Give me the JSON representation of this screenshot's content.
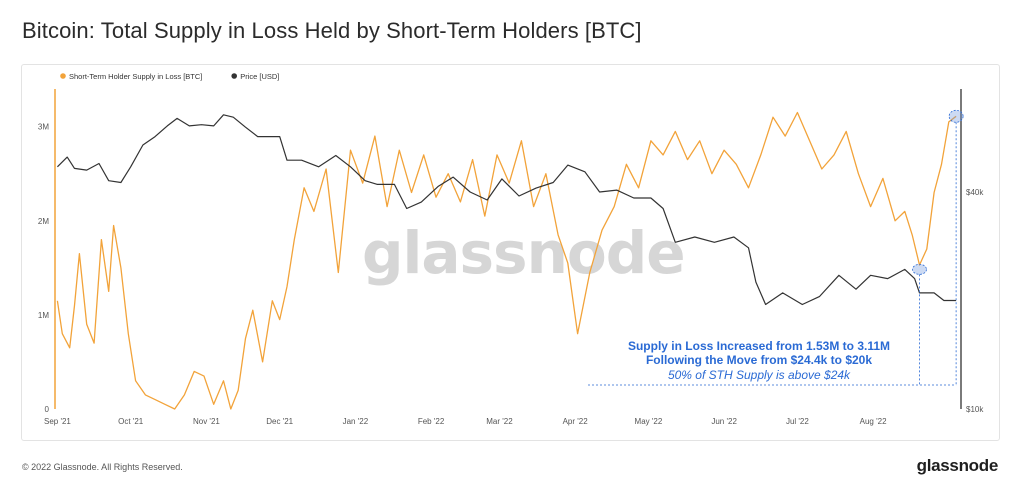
{
  "page": {
    "title": "Bitcoin: Total Supply in Loss Held by Short-Term Holders [BTC]",
    "copyright": "© 2022 Glassnode. All Rights Reserved.",
    "brand": "glassnode",
    "watermark": "glassnode"
  },
  "chart_data": {
    "type": "line",
    "title": "Bitcoin: Total Supply in Loss Held by Short-Term Holders [BTC]",
    "legend_position": "top-left",
    "grid": false,
    "x_labels": [
      "Sep '21",
      "Oct '21",
      "Nov '21",
      "Dec '21",
      "Jan '22",
      "Feb '22",
      "Mar '22",
      "Apr '22",
      "May '22",
      "Jun '22",
      "Jul '22",
      "Aug '22"
    ],
    "x_domain": [
      "2021-08-31",
      "2022-09-06"
    ],
    "y_left": {
      "ticks": [
        "0",
        "1M",
        "2M",
        "3M"
      ],
      "tick_values": [
        0,
        1000000,
        2000000,
        3000000
      ],
      "range": [
        0,
        3400000
      ]
    },
    "y_right": {
      "scale": "log",
      "ticks": [
        "$10k",
        "$40k"
      ],
      "tick_values": [
        10000,
        40000
      ]
    },
    "series": [
      {
        "name": "Short-Term Holder Supply in Loss [BTC]",
        "color": "#f2a33a",
        "axis": "left",
        "x": [
          "2021-09-01",
          "2021-09-03",
          "2021-09-06",
          "2021-09-08",
          "2021-09-10",
          "2021-09-13",
          "2021-09-16",
          "2021-09-19",
          "2021-09-22",
          "2021-09-24",
          "2021-09-27",
          "2021-09-30",
          "2021-10-03",
          "2021-10-07",
          "2021-10-11",
          "2021-10-15",
          "2021-10-19",
          "2021-10-23",
          "2021-10-27",
          "2021-10-31",
          "2021-11-04",
          "2021-11-08",
          "2021-11-11",
          "2021-11-14",
          "2021-11-17",
          "2021-11-20",
          "2021-11-24",
          "2021-11-28",
          "2021-12-01",
          "2021-12-04",
          "2021-12-07",
          "2021-12-11",
          "2021-12-15",
          "2021-12-20",
          "2021-12-25",
          "2021-12-30",
          "2022-01-04",
          "2022-01-09",
          "2022-01-14",
          "2022-01-19",
          "2022-01-24",
          "2022-01-29",
          "2022-02-03",
          "2022-02-08",
          "2022-02-13",
          "2022-02-18",
          "2022-02-23",
          "2022-02-28",
          "2022-03-05",
          "2022-03-10",
          "2022-03-15",
          "2022-03-20",
          "2022-03-25",
          "2022-03-29",
          "2022-04-02",
          "2022-04-07",
          "2022-04-12",
          "2022-04-17",
          "2022-04-22",
          "2022-04-27",
          "2022-05-02",
          "2022-05-07",
          "2022-05-12",
          "2022-05-17",
          "2022-05-22",
          "2022-05-27",
          "2022-06-01",
          "2022-06-06",
          "2022-06-11",
          "2022-06-16",
          "2022-06-21",
          "2022-06-26",
          "2022-07-01",
          "2022-07-06",
          "2022-07-11",
          "2022-07-16",
          "2022-07-21",
          "2022-07-26",
          "2022-07-31",
          "2022-08-05",
          "2022-08-10",
          "2022-08-14",
          "2022-08-17",
          "2022-08-20",
          "2022-08-23",
          "2022-08-26",
          "2022-08-29",
          "2022-09-01",
          "2022-09-04"
        ],
        "values": [
          1150000,
          800000,
          650000,
          1100000,
          1650000,
          900000,
          700000,
          1800000,
          1250000,
          1950000,
          1500000,
          800000,
          300000,
          150000,
          100000,
          50000,
          0,
          150000,
          400000,
          350000,
          50000,
          300000,
          0,
          200000,
          750000,
          1050000,
          500000,
          1150000,
          950000,
          1300000,
          1800000,
          2350000,
          2100000,
          2550000,
          1450000,
          2750000,
          2400000,
          2900000,
          2150000,
          2750000,
          2300000,
          2700000,
          2250000,
          2500000,
          2200000,
          2650000,
          2050000,
          2700000,
          2400000,
          2850000,
          2150000,
          2500000,
          1850000,
          1550000,
          800000,
          1450000,
          1900000,
          2150000,
          2600000,
          2350000,
          2850000,
          2700000,
          2950000,
          2650000,
          2850000,
          2500000,
          2750000,
          2600000,
          2350000,
          2700000,
          3100000,
          2900000,
          3150000,
          2850000,
          2550000,
          2700000,
          2950000,
          2500000,
          2150000,
          2450000,
          2000000,
          2100000,
          1850000,
          1530000,
          1700000,
          2300000,
          2600000,
          3050000,
          3110000
        ]
      },
      {
        "name": "Price [USD]",
        "color": "#333333",
        "axis": "right",
        "x": [
          "2021-09-01",
          "2021-09-05",
          "2021-09-08",
          "2021-09-13",
          "2021-09-18",
          "2021-09-22",
          "2021-09-27",
          "2021-10-01",
          "2021-10-06",
          "2021-10-11",
          "2021-10-16",
          "2021-10-20",
          "2021-10-25",
          "2021-10-30",
          "2021-11-04",
          "2021-11-08",
          "2021-11-12",
          "2021-11-17",
          "2021-11-22",
          "2021-11-27",
          "2021-12-01",
          "2021-12-04",
          "2021-12-10",
          "2021-12-17",
          "2021-12-24",
          "2021-12-30",
          "2022-01-05",
          "2022-01-10",
          "2022-01-17",
          "2022-01-22",
          "2022-01-28",
          "2022-02-04",
          "2022-02-10",
          "2022-02-17",
          "2022-02-24",
          "2022-03-02",
          "2022-03-09",
          "2022-03-16",
          "2022-03-23",
          "2022-03-29",
          "2022-04-05",
          "2022-04-11",
          "2022-04-18",
          "2022-04-25",
          "2022-05-02",
          "2022-05-07",
          "2022-05-12",
          "2022-05-20",
          "2022-05-28",
          "2022-06-05",
          "2022-06-11",
          "2022-06-14",
          "2022-06-18",
          "2022-06-25",
          "2022-07-03",
          "2022-07-10",
          "2022-07-18",
          "2022-07-25",
          "2022-07-31",
          "2022-08-07",
          "2022-08-14",
          "2022-08-18",
          "2022-08-20",
          "2022-08-26",
          "2022-08-30",
          "2022-09-04"
        ],
        "values": [
          47000,
          50000,
          46500,
          46000,
          48000,
          43000,
          42500,
          47000,
          54000,
          57000,
          61000,
          64000,
          61000,
          61500,
          61000,
          65500,
          64500,
          60500,
          57000,
          57000,
          57000,
          49000,
          49000,
          47000,
          50500,
          47000,
          43000,
          42000,
          42000,
          36000,
          37500,
          41500,
          44000,
          40000,
          38000,
          43500,
          39000,
          41000,
          42500,
          47500,
          45500,
          40000,
          40500,
          38500,
          38500,
          36000,
          29000,
          30000,
          29000,
          30000,
          28000,
          22500,
          19500,
          21000,
          19500,
          20500,
          23500,
          21500,
          23500,
          23000,
          24400,
          23000,
          21000,
          21000,
          20000,
          20000
        ]
      }
    ],
    "annotations": [
      "Supply in Loss Increased from 1.53M to 3.11M",
      "Following the Move from $24.4k to $20k",
      "50% of STH Supply is above $24k"
    ]
  }
}
